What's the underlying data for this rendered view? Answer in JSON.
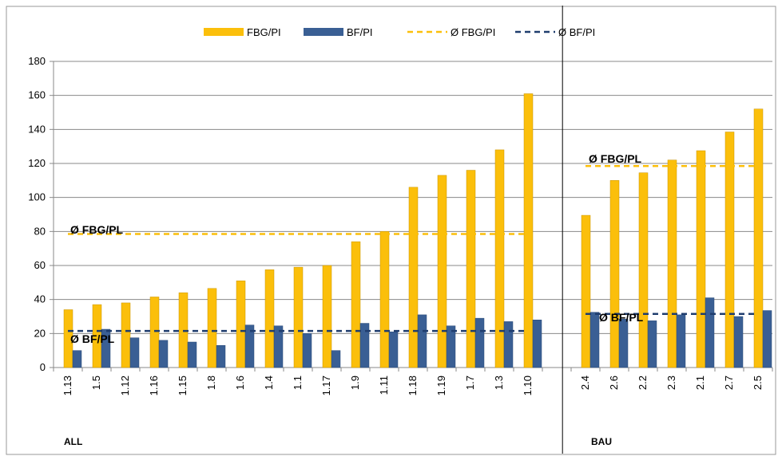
{
  "chart_data": {
    "type": "bar",
    "categories": [
      "1.13",
      "1.5",
      "1.12",
      "1.16",
      "1.15",
      "1.8",
      "1.6",
      "1.4",
      "1.1",
      "1.17",
      "1.9",
      "1.11",
      "1.18",
      "1.19",
      "1.7",
      "1.3",
      "1.10",
      null,
      "2.4",
      "2.6",
      "2.2",
      "2.3",
      "2.1",
      "2.7",
      "2.5"
    ],
    "series": [
      {
        "name": "FBG/PI",
        "color": "#fbbf0b",
        "kind": "bar",
        "values": [
          34,
          37,
          38,
          41.5,
          44,
          46.5,
          51,
          57.5,
          59,
          60,
          74,
          80,
          106,
          113,
          116,
          128,
          161,
          null,
          89.5,
          110,
          114.5,
          122,
          127.5,
          138.5,
          152
        ]
      },
      {
        "name": "BF/PI",
        "color": "#3a5f94",
        "kind": "bar",
        "values": [
          10,
          22.5,
          17.5,
          16,
          15,
          13,
          25,
          24.5,
          20,
          10,
          26,
          21,
          31,
          24.5,
          29,
          27,
          28,
          null,
          32.5,
          28.5,
          27.5,
          31,
          41,
          30,
          33.5
        ]
      },
      {
        "name": "Ø FBG/PI",
        "color": "#fbbf0b",
        "kind": "dashed-line",
        "values": [
          78.5,
          78.5,
          78.5,
          78.5,
          78.5,
          78.5,
          78.5,
          78.5,
          78.5,
          78.5,
          78.5,
          78.5,
          78.5,
          78.5,
          78.5,
          78.5,
          78.5,
          null,
          118.5,
          118.5,
          118.5,
          118.5,
          118.5,
          118.5,
          118.5
        ]
      },
      {
        "name": "Ø BF/PI",
        "color": "#1f3d6e",
        "kind": "dashed-line",
        "values": [
          21.5,
          21.5,
          21.5,
          21.5,
          21.5,
          21.5,
          21.5,
          21.5,
          21.5,
          21.5,
          21.5,
          21.5,
          21.5,
          21.5,
          21.5,
          21.5,
          21.5,
          null,
          31.5,
          31.5,
          31.5,
          31.5,
          31.5,
          31.5,
          31.5
        ]
      }
    ],
    "ylim": [
      0,
      180
    ],
    "yticks": [
      0,
      20,
      40,
      60,
      80,
      100,
      120,
      140,
      160,
      180
    ],
    "grid": true,
    "annotations": [
      "Ø FBG/PL",
      "Ø BF/PL",
      "Ø FBG/PL",
      "Ø BF/PL",
      "ALL",
      "BAU"
    ]
  }
}
